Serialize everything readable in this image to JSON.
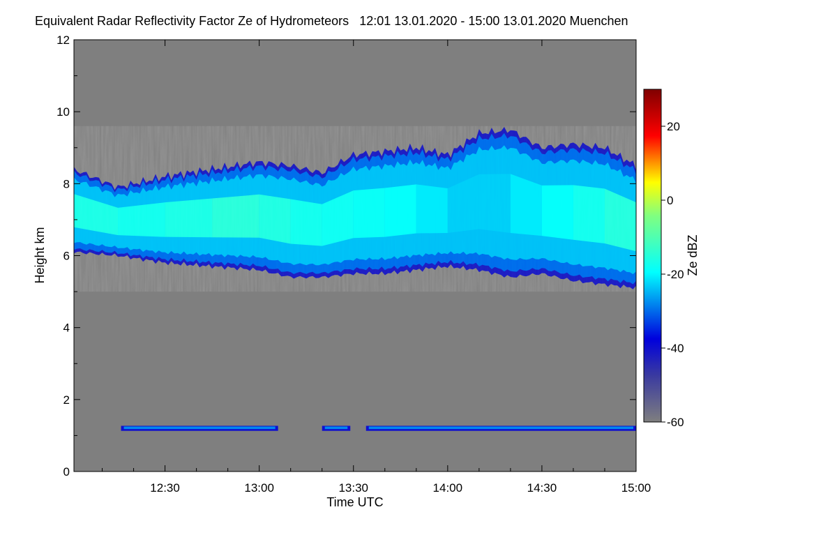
{
  "chart_data": {
    "type": "heatmap",
    "title": "Equivalent Radar Reflectivity Factor Ze of Hydrometeors",
    "period": "12:01 13.01.2020 - 15:00 13.01.2020",
    "location": "Muenchen",
    "xlabel": "Time UTC",
    "ylabel": "Height km",
    "x_range_min_after_12": [
      1,
      180
    ],
    "x_ticks": [
      {
        "min": 30,
        "label": "12:30"
      },
      {
        "min": 60,
        "label": "13:00"
      },
      {
        "min": 90,
        "label": "13:30"
      },
      {
        "min": 120,
        "label": "14:00"
      },
      {
        "min": 150,
        "label": "14:30"
      },
      {
        "min": 180,
        "label": "15:00"
      }
    ],
    "ylim": [
      0,
      12
    ],
    "y_ticks": [
      0,
      2,
      4,
      6,
      8,
      10,
      12
    ],
    "background_color": "#7f7f7f",
    "colorbar": {
      "label": "Ze dBZ",
      "range": [
        -60,
        30
      ],
      "ticks": [
        20,
        0,
        -20,
        -40,
        -60
      ],
      "colors": [
        "#7f7f7f",
        "#0000dd",
        "#00ffff",
        "#ffff00",
        "#ff0000",
        "#800000"
      ]
    },
    "cloud_layer": {
      "description": "upper ice cloud layer",
      "time_min": [
        1,
        15,
        30,
        45,
        60,
        70,
        80,
        90,
        100,
        110,
        120,
        130,
        140,
        150,
        160,
        170,
        180
      ],
      "base_km": [
        6.1,
        6.0,
        5.8,
        5.7,
        5.6,
        5.4,
        5.4,
        5.5,
        5.5,
        5.6,
        5.7,
        5.6,
        5.4,
        5.5,
        5.3,
        5.2,
        5.1
      ],
      "top_km": [
        8.4,
        7.9,
        8.2,
        8.4,
        8.6,
        8.5,
        8.3,
        8.8,
        8.9,
        9.0,
        8.8,
        9.4,
        9.5,
        9.0,
        9.1,
        9.0,
        8.5
      ],
      "core_dbz": [
        -15,
        -18,
        -17,
        -16,
        -14,
        -18,
        -17,
        -19,
        -18,
        -20,
        -22,
        -24,
        -22,
        -20,
        -18,
        -17,
        -14
      ]
    },
    "low_layer": {
      "description": "thin low layer near 1.2 km",
      "height_km": 1.2,
      "segments_min": [
        [
          16,
          66
        ],
        [
          80,
          89
        ],
        [
          94,
          180
        ]
      ]
    }
  }
}
